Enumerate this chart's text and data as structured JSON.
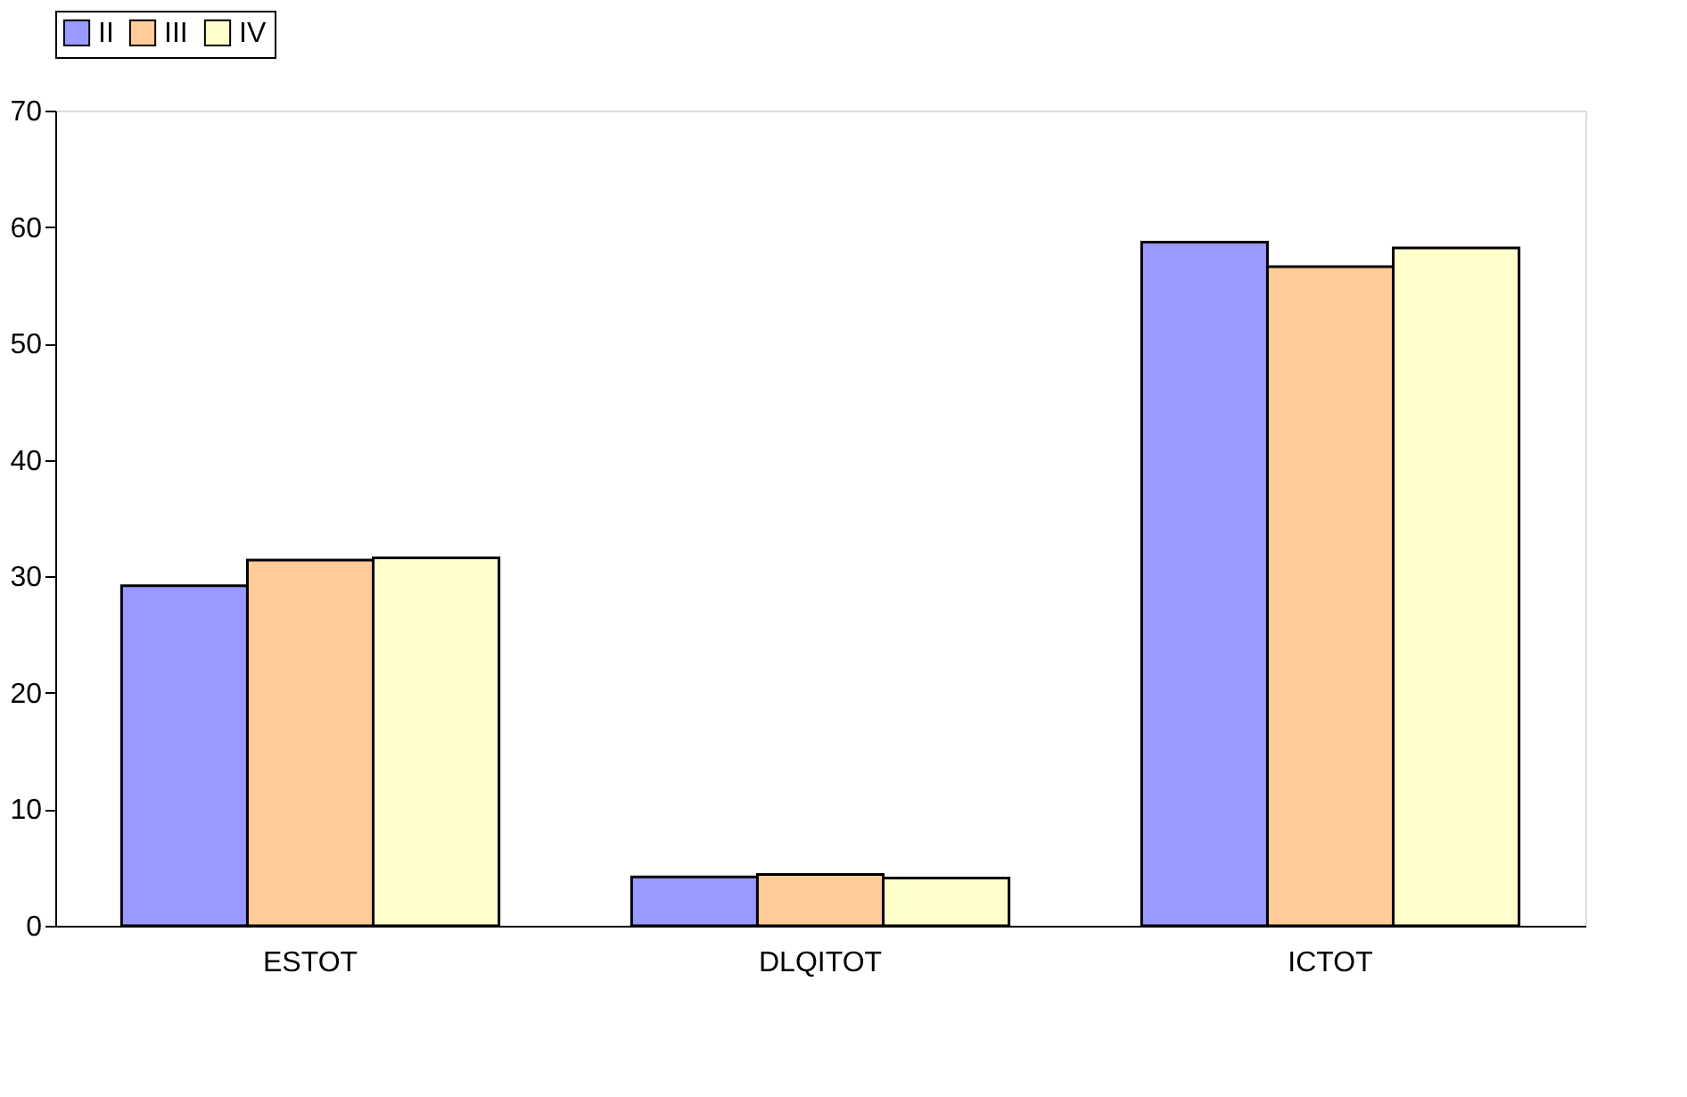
{
  "chart_data": {
    "type": "bar",
    "categories": [
      "ESTOT",
      "DLQITOT",
      "ICTOT"
    ],
    "series": [
      {
        "name": "II",
        "color": "#9999ff",
        "values": [
          29.2,
          4.2,
          58.7
        ]
      },
      {
        "name": "III",
        "color": "#ffcc99",
        "values": [
          31.4,
          4.4,
          56.6
        ]
      },
      {
        "name": "IV",
        "color": "#ffffcc",
        "values": [
          31.6,
          4.1,
          58.2
        ]
      }
    ],
    "ylim": [
      0,
      70
    ],
    "yticks": [
      0,
      10,
      20,
      30,
      40,
      50,
      60,
      70
    ],
    "grid": false,
    "legend": "top"
  }
}
